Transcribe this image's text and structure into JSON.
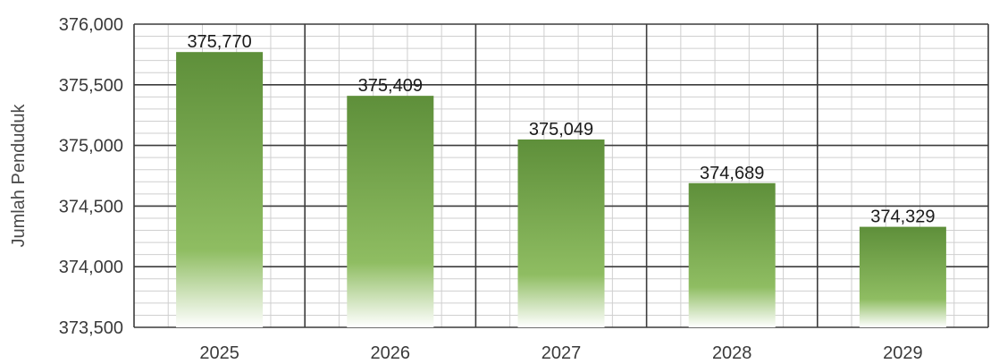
{
  "chart_data": {
    "type": "bar",
    "categories": [
      "2025",
      "2026",
      "2027",
      "2028",
      "2029"
    ],
    "values": [
      375770,
      375409,
      375049,
      374689,
      374329
    ],
    "data_labels": [
      "375,770",
      "375,409",
      "375,049",
      "374,689",
      "374,329"
    ],
    "title": "",
    "xlabel": "",
    "ylabel": "Jumlah Penduduk",
    "ylim": [
      373500,
      376000
    ],
    "yticks": [
      373500,
      374000,
      374500,
      375000,
      375500,
      376000
    ],
    "ytick_labels": [
      "373,500",
      "374,000",
      "374,500",
      "375,000",
      "375,500",
      "376,000"
    ],
    "grid": true,
    "legend": "none",
    "colors": {
      "bar_top": "#5e8f3a",
      "bar_mid": "#8fbd62",
      "bar_bottom": "#ffffff",
      "major_grid": "#3c3c3c",
      "minor_grid": "#cfcfcf"
    }
  }
}
